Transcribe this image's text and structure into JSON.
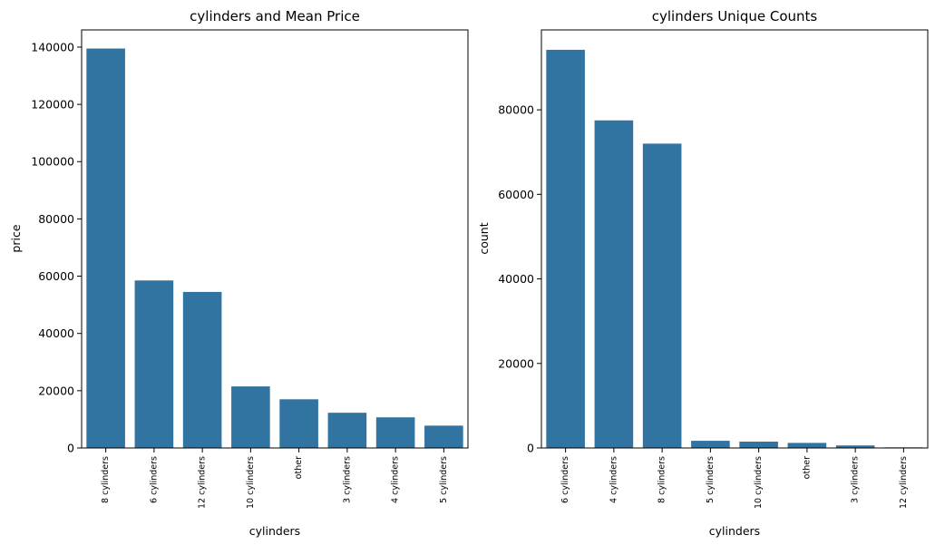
{
  "bar_color": "#3274a1",
  "chart_data": [
    {
      "type": "bar",
      "title": "cylinders and Mean Price",
      "xlabel": "cylinders",
      "ylabel": "price",
      "categories": [
        "8 cylinders",
        "6 cylinders",
        "12 cylinders",
        "10 cylinders",
        "other",
        "3 cylinders",
        "4 cylinders",
        "5 cylinders"
      ],
      "values": [
        139500,
        58500,
        54500,
        21500,
        17000,
        12300,
        10700,
        7800
      ],
      "ylim": [
        0,
        146000
      ],
      "yticks": [
        0,
        20000,
        40000,
        60000,
        80000,
        100000,
        120000,
        140000
      ],
      "ytick_labels": [
        "0",
        "20000",
        "40000",
        "60000",
        "80000",
        "100000",
        "120000",
        "140000"
      ],
      "grid": false,
      "legend": "none"
    },
    {
      "type": "bar",
      "title": "cylinders Unique Counts",
      "xlabel": "cylinders",
      "ylabel": "count",
      "categories": [
        "6 cylinders",
        "4 cylinders",
        "8 cylinders",
        "5 cylinders",
        "10 cylinders",
        "other",
        "3 cylinders",
        "12 cylinders"
      ],
      "values": [
        94200,
        77500,
        72000,
        1700,
        1500,
        1200,
        600,
        150
      ],
      "ylim": [
        0,
        98900
      ],
      "yticks": [
        0,
        20000,
        40000,
        60000,
        80000
      ],
      "ytick_labels": [
        "0",
        "20000",
        "40000",
        "60000",
        "80000"
      ],
      "grid": false,
      "legend": "none"
    }
  ]
}
